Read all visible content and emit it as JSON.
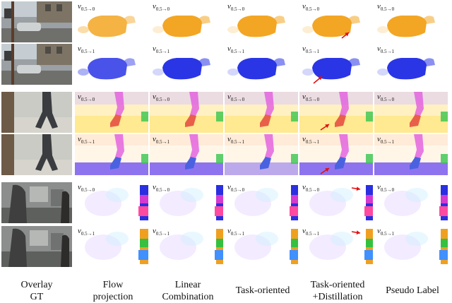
{
  "figure": {
    "column_captions": [
      [
        "Overlay",
        "GT"
      ],
      [
        "Flow",
        "projection"
      ],
      [
        "Linear",
        "Combination"
      ],
      [
        "Task-oriented"
      ],
      [
        "Task-oriented",
        "+Distillation"
      ],
      [
        "Pseudo Label"
      ]
    ],
    "rows": [
      {
        "scene": "street",
        "label_main": "v",
        "labels_sub": [
          "0.5→0",
          "0.5→0",
          "0.5→0",
          "0.5→0",
          "0.5→0"
        ],
        "flow_color": "#f3a623",
        "arrow_col": 4
      },
      {
        "scene": "street",
        "label_main": "v",
        "labels_sub": [
          "0.5→1",
          "0.5→1",
          "0.5→1",
          "0.5→1",
          "0.5→1"
        ],
        "flow_color": "#2a35e6",
        "arrow_col": 4
      },
      {
        "scene": "walker",
        "label_main": "v",
        "labels_sub": [
          "0.5→0",
          "0.5→0",
          "0.5→0",
          "0.5→0",
          "0.5→0"
        ],
        "flow_color": "#e8604a",
        "arrow_col": 4
      },
      {
        "scene": "walker",
        "label_main": "v",
        "labels_sub": [
          "0.5→1",
          "0.5→1",
          "0.5→1",
          "0.5→1",
          "0.5→1"
        ],
        "flow_color": "#4a62e0",
        "arrow_col": 4
      },
      {
        "scene": "office",
        "label_main": "v",
        "labels_sub": [
          "0.5→0",
          "0.5→0",
          "0.5→0",
          "0.5→0",
          "0.5→0"
        ],
        "flow_color": "#d23ad0",
        "arrow_col": 4
      },
      {
        "scene": "office",
        "label_main": "v",
        "labels_sub": [
          "0.5→1",
          "0.5→1",
          "0.5→1",
          "0.5→1",
          "0.5→1"
        ],
        "flow_color": "#35c040",
        "arrow_col": 4
      }
    ],
    "colors": {
      "arrow": "#e01010",
      "label": "#111111"
    }
  }
}
